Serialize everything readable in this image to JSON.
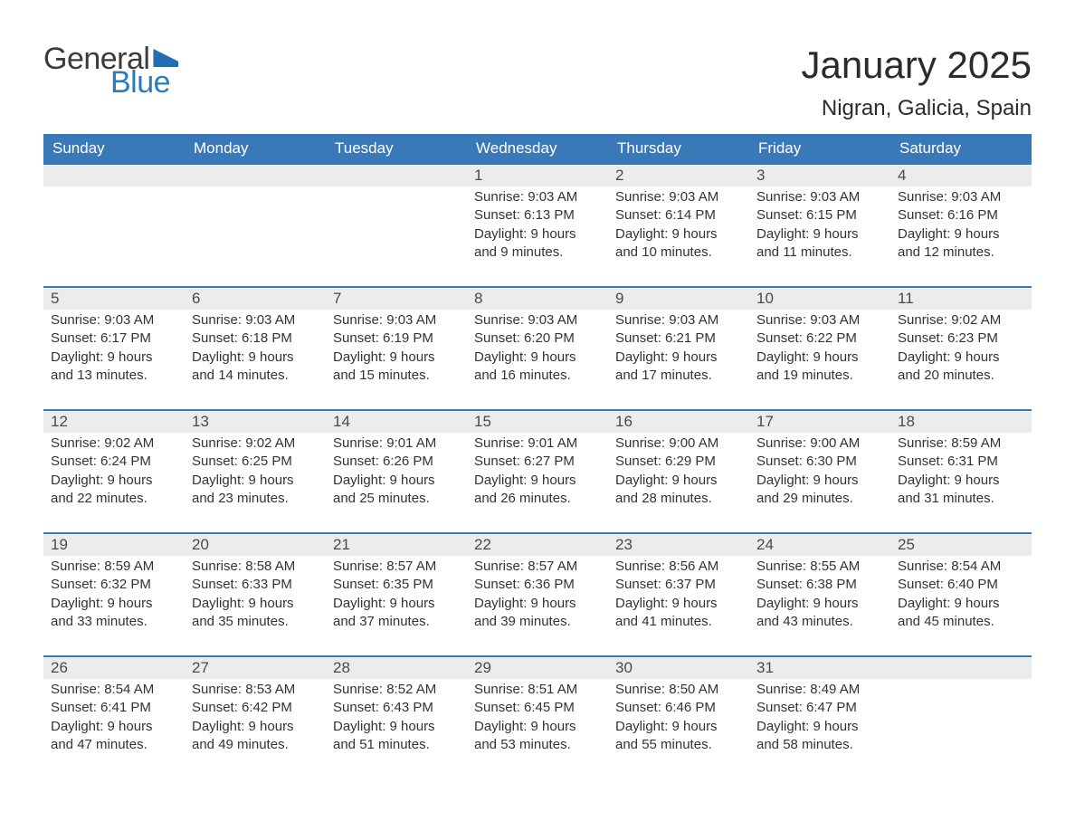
{
  "logo": {
    "text1": "General",
    "text2": "Blue",
    "flag_color": "#1f6fb2",
    "text1_color": "#3b3b3b",
    "text2_color": "#2b7bbd"
  },
  "title": "January 2025",
  "location": "Nigran, Galicia, Spain",
  "colors": {
    "header_bg": "#3a79b7",
    "header_text": "#ffffff",
    "daynum_bg": "#ececec",
    "row_border": "#3a79b7",
    "body_text": "#333333",
    "page_bg": "#ffffff"
  },
  "dayHeaders": [
    "Sunday",
    "Monday",
    "Tuesday",
    "Wednesday",
    "Thursday",
    "Friday",
    "Saturday"
  ],
  "weeks": [
    [
      {
        "n": "",
        "lines": []
      },
      {
        "n": "",
        "lines": []
      },
      {
        "n": "",
        "lines": []
      },
      {
        "n": "1",
        "lines": [
          "Sunrise: 9:03 AM",
          "Sunset: 6:13 PM",
          "Daylight: 9 hours",
          "and 9 minutes."
        ]
      },
      {
        "n": "2",
        "lines": [
          "Sunrise: 9:03 AM",
          "Sunset: 6:14 PM",
          "Daylight: 9 hours",
          "and 10 minutes."
        ]
      },
      {
        "n": "3",
        "lines": [
          "Sunrise: 9:03 AM",
          "Sunset: 6:15 PM",
          "Daylight: 9 hours",
          "and 11 minutes."
        ]
      },
      {
        "n": "4",
        "lines": [
          "Sunrise: 9:03 AM",
          "Sunset: 6:16 PM",
          "Daylight: 9 hours",
          "and 12 minutes."
        ]
      }
    ],
    [
      {
        "n": "5",
        "lines": [
          "Sunrise: 9:03 AM",
          "Sunset: 6:17 PM",
          "Daylight: 9 hours",
          "and 13 minutes."
        ]
      },
      {
        "n": "6",
        "lines": [
          "Sunrise: 9:03 AM",
          "Sunset: 6:18 PM",
          "Daylight: 9 hours",
          "and 14 minutes."
        ]
      },
      {
        "n": "7",
        "lines": [
          "Sunrise: 9:03 AM",
          "Sunset: 6:19 PM",
          "Daylight: 9 hours",
          "and 15 minutes."
        ]
      },
      {
        "n": "8",
        "lines": [
          "Sunrise: 9:03 AM",
          "Sunset: 6:20 PM",
          "Daylight: 9 hours",
          "and 16 minutes."
        ]
      },
      {
        "n": "9",
        "lines": [
          "Sunrise: 9:03 AM",
          "Sunset: 6:21 PM",
          "Daylight: 9 hours",
          "and 17 minutes."
        ]
      },
      {
        "n": "10",
        "lines": [
          "Sunrise: 9:03 AM",
          "Sunset: 6:22 PM",
          "Daylight: 9 hours",
          "and 19 minutes."
        ]
      },
      {
        "n": "11",
        "lines": [
          "Sunrise: 9:02 AM",
          "Sunset: 6:23 PM",
          "Daylight: 9 hours",
          "and 20 minutes."
        ]
      }
    ],
    [
      {
        "n": "12",
        "lines": [
          "Sunrise: 9:02 AM",
          "Sunset: 6:24 PM",
          "Daylight: 9 hours",
          "and 22 minutes."
        ]
      },
      {
        "n": "13",
        "lines": [
          "Sunrise: 9:02 AM",
          "Sunset: 6:25 PM",
          "Daylight: 9 hours",
          "and 23 minutes."
        ]
      },
      {
        "n": "14",
        "lines": [
          "Sunrise: 9:01 AM",
          "Sunset: 6:26 PM",
          "Daylight: 9 hours",
          "and 25 minutes."
        ]
      },
      {
        "n": "15",
        "lines": [
          "Sunrise: 9:01 AM",
          "Sunset: 6:27 PM",
          "Daylight: 9 hours",
          "and 26 minutes."
        ]
      },
      {
        "n": "16",
        "lines": [
          "Sunrise: 9:00 AM",
          "Sunset: 6:29 PM",
          "Daylight: 9 hours",
          "and 28 minutes."
        ]
      },
      {
        "n": "17",
        "lines": [
          "Sunrise: 9:00 AM",
          "Sunset: 6:30 PM",
          "Daylight: 9 hours",
          "and 29 minutes."
        ]
      },
      {
        "n": "18",
        "lines": [
          "Sunrise: 8:59 AM",
          "Sunset: 6:31 PM",
          "Daylight: 9 hours",
          "and 31 minutes."
        ]
      }
    ],
    [
      {
        "n": "19",
        "lines": [
          "Sunrise: 8:59 AM",
          "Sunset: 6:32 PM",
          "Daylight: 9 hours",
          "and 33 minutes."
        ]
      },
      {
        "n": "20",
        "lines": [
          "Sunrise: 8:58 AM",
          "Sunset: 6:33 PM",
          "Daylight: 9 hours",
          "and 35 minutes."
        ]
      },
      {
        "n": "21",
        "lines": [
          "Sunrise: 8:57 AM",
          "Sunset: 6:35 PM",
          "Daylight: 9 hours",
          "and 37 minutes."
        ]
      },
      {
        "n": "22",
        "lines": [
          "Sunrise: 8:57 AM",
          "Sunset: 6:36 PM",
          "Daylight: 9 hours",
          "and 39 minutes."
        ]
      },
      {
        "n": "23",
        "lines": [
          "Sunrise: 8:56 AM",
          "Sunset: 6:37 PM",
          "Daylight: 9 hours",
          "and 41 minutes."
        ]
      },
      {
        "n": "24",
        "lines": [
          "Sunrise: 8:55 AM",
          "Sunset: 6:38 PM",
          "Daylight: 9 hours",
          "and 43 minutes."
        ]
      },
      {
        "n": "25",
        "lines": [
          "Sunrise: 8:54 AM",
          "Sunset: 6:40 PM",
          "Daylight: 9 hours",
          "and 45 minutes."
        ]
      }
    ],
    [
      {
        "n": "26",
        "lines": [
          "Sunrise: 8:54 AM",
          "Sunset: 6:41 PM",
          "Daylight: 9 hours",
          "and 47 minutes."
        ]
      },
      {
        "n": "27",
        "lines": [
          "Sunrise: 8:53 AM",
          "Sunset: 6:42 PM",
          "Daylight: 9 hours",
          "and 49 minutes."
        ]
      },
      {
        "n": "28",
        "lines": [
          "Sunrise: 8:52 AM",
          "Sunset: 6:43 PM",
          "Daylight: 9 hours",
          "and 51 minutes."
        ]
      },
      {
        "n": "29",
        "lines": [
          "Sunrise: 8:51 AM",
          "Sunset: 6:45 PM",
          "Daylight: 9 hours",
          "and 53 minutes."
        ]
      },
      {
        "n": "30",
        "lines": [
          "Sunrise: 8:50 AM",
          "Sunset: 6:46 PM",
          "Daylight: 9 hours",
          "and 55 minutes."
        ]
      },
      {
        "n": "31",
        "lines": [
          "Sunrise: 8:49 AM",
          "Sunset: 6:47 PM",
          "Daylight: 9 hours",
          "and 58 minutes."
        ]
      },
      {
        "n": "",
        "lines": []
      }
    ]
  ]
}
